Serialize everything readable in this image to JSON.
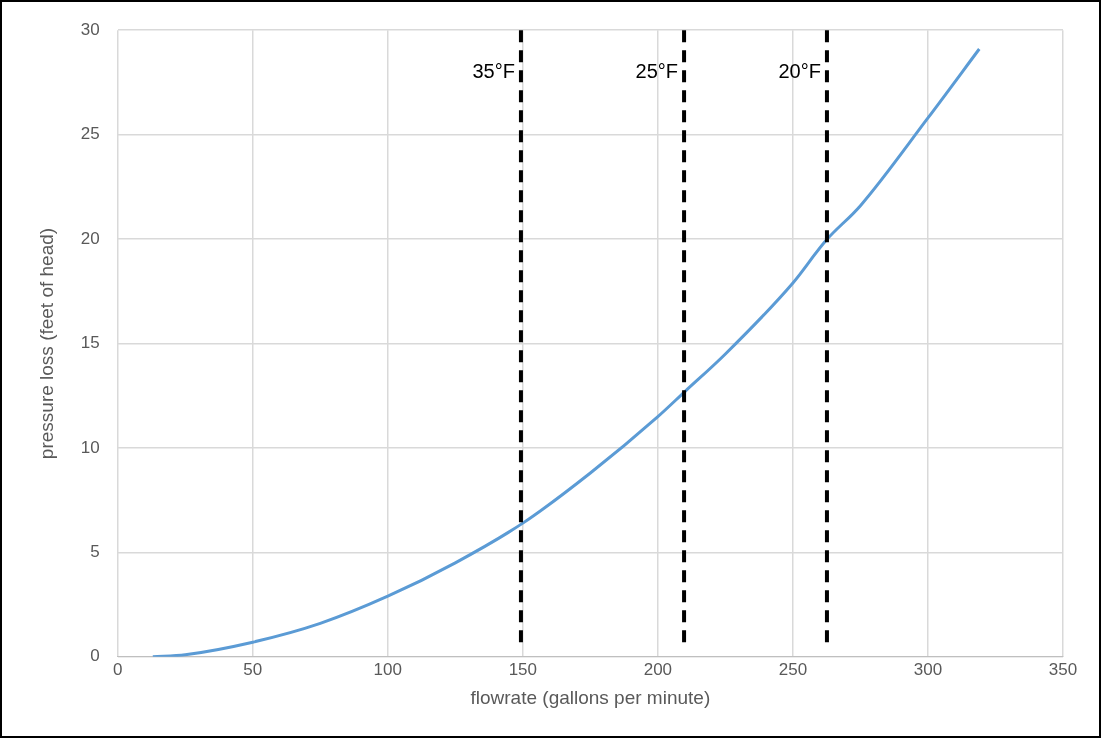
{
  "chart_data": {
    "type": "line",
    "xlabel": "flowrate (gallons per minute)",
    "ylabel": "pressure loss (feet of head)",
    "x": [
      13,
      25,
      50,
      75,
      100,
      125,
      150,
      175,
      200,
      210,
      225,
      250,
      262,
      275,
      300,
      319
    ],
    "series": [
      {
        "color": "#5b9bd5",
        "values": [
          0,
          0.1,
          0.7,
          1.6,
          2.9,
          4.5,
          6.4,
          8.8,
          11.5,
          12.7,
          14.5,
          17.9,
          19.9,
          21.6,
          25.8,
          29.1
        ]
      }
    ],
    "xlim": [
      0,
      350
    ],
    "xticks": [
      0,
      50,
      100,
      150,
      200,
      250,
      300,
      350
    ],
    "ylim": [
      0,
      30
    ],
    "yticks": [
      0,
      5,
      10,
      15,
      20,
      25,
      30
    ],
    "grid": true,
    "legend": false,
    "marker": "none",
    "line_style": "solid",
    "ref_lines": [
      {
        "axis": "x",
        "value": 149.3,
        "label": "35°F",
        "color": "#000000",
        "line_style": "dashed"
      },
      {
        "axis": "x",
        "value": 209.7,
        "label": "25°F",
        "color": "#000000",
        "line_style": "dashed"
      },
      {
        "axis": "x",
        "value": 262.6,
        "label": "20°F",
        "color": "#000000",
        "line_style": "dashed"
      }
    ]
  }
}
